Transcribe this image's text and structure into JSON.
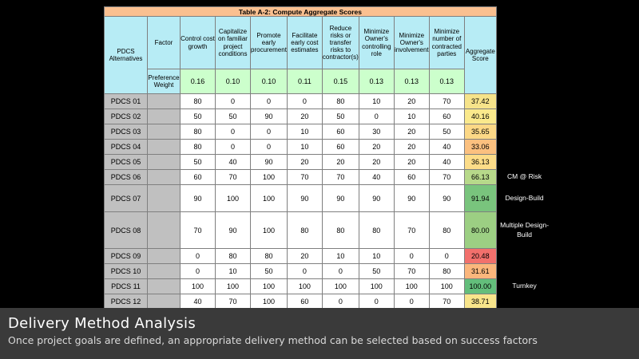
{
  "table": {
    "title": "Table A-2:   Compute Aggregate Scores",
    "headers": {
      "alternatives": "PDCS Alternatives",
      "factor": "Factor",
      "criteria": [
        "Control cost growth",
        "Capitalize on familiar project conditions",
        "Promote early procurement",
        "Facilitate early cost estimates",
        "Reduce risks or transfer risks to contractor(s)",
        "Minimize Owner's controlling role",
        "Minimize Owner's involvement",
        "Minimize number of contracted parties"
      ],
      "aggregate": "Aggregate Score"
    },
    "preference_label": "Preference Weight",
    "weights": [
      "0.16",
      "0.10",
      "0.10",
      "0.11",
      "0.15",
      "0.13",
      "0.13",
      "0.13"
    ],
    "rows": [
      {
        "name": "PDCS 01",
        "values": [
          "80",
          "0",
          "0",
          "0",
          "80",
          "10",
          "20",
          "70"
        ],
        "score": "37.42",
        "score_color": "#f6e38a",
        "label": ""
      },
      {
        "name": "PDCS 02",
        "values": [
          "50",
          "50",
          "90",
          "20",
          "50",
          "0",
          "10",
          "60"
        ],
        "score": "40.16",
        "score_color": "#fae98c",
        "label": ""
      },
      {
        "name": "PDCS 03",
        "values": [
          "80",
          "0",
          "0",
          "10",
          "60",
          "30",
          "20",
          "50"
        ],
        "score": "35.65",
        "score_color": "#fcd886",
        "label": ""
      },
      {
        "name": "PDCS 04",
        "values": [
          "80",
          "0",
          "0",
          "10",
          "60",
          "20",
          "20",
          "40"
        ],
        "score": "33.06",
        "score_color": "#fbc07f",
        "label": ""
      },
      {
        "name": "PDCS 05",
        "values": [
          "50",
          "40",
          "90",
          "20",
          "20",
          "20",
          "20",
          "40"
        ],
        "score": "36.13",
        "score_color": "#fcdc88",
        "label": ""
      },
      {
        "name": "PDCS 06",
        "values": [
          "60",
          "70",
          "100",
          "70",
          "70",
          "40",
          "60",
          "70"
        ],
        "score": "66.13",
        "score_color": "#b7d98a",
        "label": "CM @ Risk"
      },
      {
        "name": "PDCS 07",
        "values": [
          "90",
          "100",
          "100",
          "90",
          "90",
          "90",
          "90",
          "90"
        ],
        "score": "91.94",
        "score_color": "#79c47d",
        "label": "Design-Build"
      },
      {
        "name": "PDCS 08",
        "values": [
          "70",
          "90",
          "100",
          "80",
          "80",
          "80",
          "70",
          "80"
        ],
        "score": "80.00",
        "score_color": "#9ccf83",
        "label": "Multiple Design-Build"
      },
      {
        "name": "PDCS 09",
        "values": [
          "0",
          "80",
          "80",
          "20",
          "10",
          "10",
          "0",
          "0"
        ],
        "score": "20.48",
        "score_color": "#f2706c",
        "label": ""
      },
      {
        "name": "PDCS 10",
        "values": [
          "0",
          "10",
          "50",
          "0",
          "0",
          "50",
          "70",
          "80"
        ],
        "score": "31.61",
        "score_color": "#fbb67c",
        "label": ""
      },
      {
        "name": "PDCS 11",
        "values": [
          "100",
          "100",
          "100",
          "100",
          "100",
          "100",
          "100",
          "100"
        ],
        "score": "100.00",
        "score_color": "#63be7b",
        "label": "Turnkey"
      },
      {
        "name": "PDCS 12",
        "values": [
          "40",
          "70",
          "100",
          "60",
          "0",
          "0",
          "0",
          "70"
        ],
        "score": "38.71",
        "score_color": "#f8e58b",
        "label": ""
      }
    ]
  },
  "footer": {
    "title": "Delivery Method Analysis",
    "subtitle": "Once project goals are defined, an appropriate delivery method can be selected based on success factors"
  }
}
